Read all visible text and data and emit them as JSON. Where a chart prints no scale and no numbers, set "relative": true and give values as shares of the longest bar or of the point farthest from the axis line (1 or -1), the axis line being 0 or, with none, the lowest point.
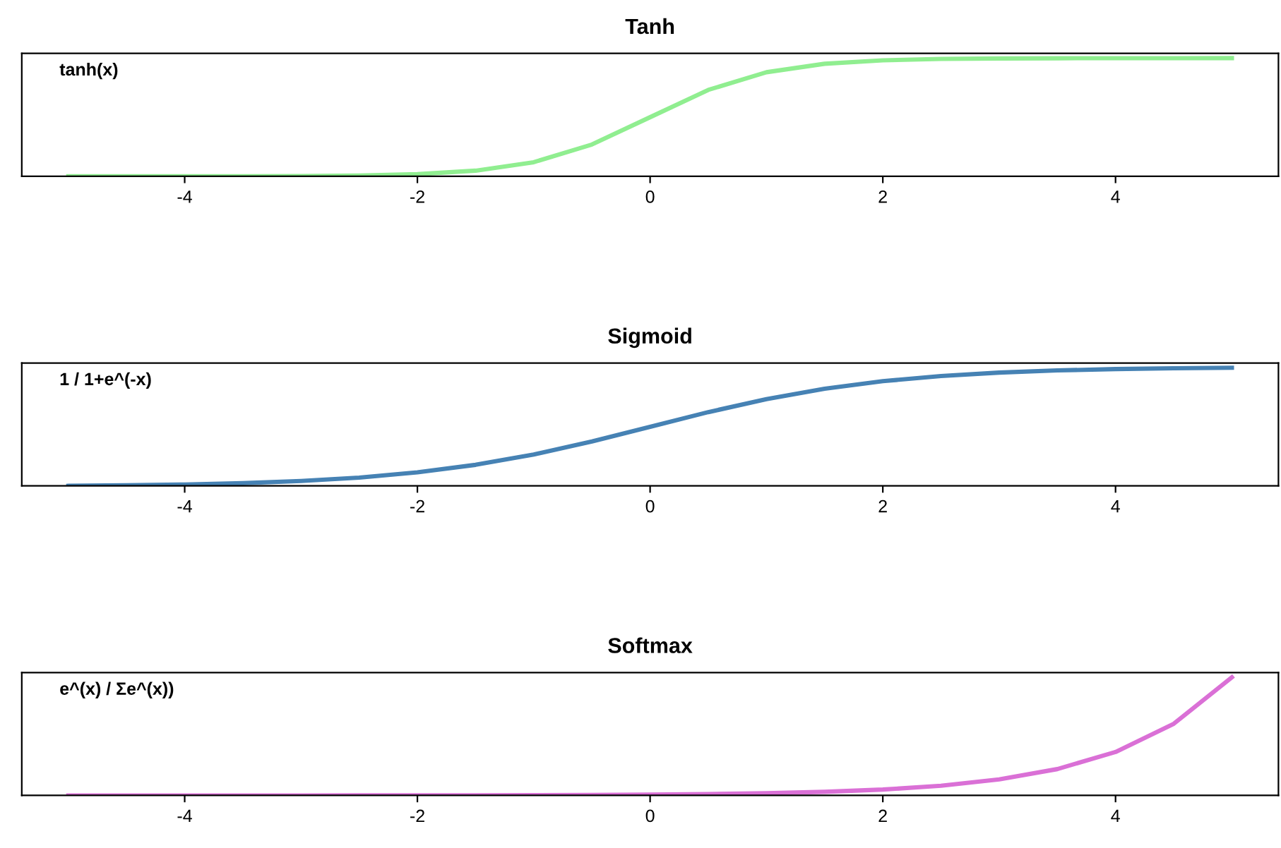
{
  "chart_data": [
    {
      "type": "line",
      "title": "Tanh",
      "relative": true,
      "tick_labels": "x",
      "grid": false,
      "annotations": [
        "tanh(x)"
      ],
      "x": [
        -5,
        -4.5,
        -4,
        -3.5,
        -3,
        -2.5,
        -2,
        -1.5,
        -1,
        -0.5,
        0,
        0.5,
        1,
        1.5,
        2,
        2.5,
        3,
        3.5,
        4,
        4.5,
        5
      ],
      "xlim": [
        -5.4,
        5.4
      ],
      "xticks": [
        -4,
        -2,
        0,
        2,
        4
      ],
      "series": [
        {
          "color": "#90ee90",
          "values": [
            0,
            0.0001,
            0.0003,
            0.0009,
            0.0025,
            0.0067,
            0.018,
            0.0474,
            0.1192,
            0.2689,
            0.5,
            0.7311,
            0.8808,
            0.9526,
            0.982,
            0.9933,
            0.9975,
            0.9991,
            0.9997,
            0.9999,
            1
          ]
        }
      ]
    },
    {
      "type": "line",
      "title": "Sigmoid",
      "relative": true,
      "tick_labels": "x",
      "grid": false,
      "annotations": [
        "1 / 1+e^(-x)"
      ],
      "x": [
        -5,
        -4.5,
        -4,
        -3.5,
        -3,
        -2.5,
        -2,
        -1.5,
        -1,
        -0.5,
        0,
        0.5,
        1,
        1.5,
        2,
        2.5,
        3,
        3.5,
        4,
        4.5,
        5
      ],
      "xlim": [
        -5.4,
        5.4
      ],
      "xticks": [
        -4,
        -2,
        0,
        2,
        4
      ],
      "series": [
        {
          "color": "#4682b4",
          "values": [
            0,
            0.0047,
            0.0114,
            0.0229,
            0.0412,
            0.0701,
            0.114,
            0.178,
            0.2658,
            0.3758,
            0.5,
            0.6242,
            0.7342,
            0.822,
            0.886,
            0.9299,
            0.9588,
            0.9771,
            0.9886,
            0.9953,
            1
          ]
        }
      ]
    },
    {
      "type": "line",
      "title": "Softmax",
      "relative": true,
      "tick_labels": "x",
      "grid": false,
      "annotations": [
        "e^(x) / Σe^(x))"
      ],
      "x": [
        -5,
        -4.5,
        -4,
        -3.5,
        -3,
        -2.5,
        -2,
        -1.5,
        -1,
        -0.5,
        0,
        0.5,
        1,
        1.5,
        2,
        2.5,
        3,
        3.5,
        4,
        4.5,
        5
      ],
      "xlim": [
        -5.4,
        5.4
      ],
      "xticks": [
        -4,
        -2,
        0,
        2,
        4
      ],
      "series": [
        {
          "color": "#da70d6",
          "values": [
            0,
            0,
            0,
            0.0001,
            0.0002,
            0.0003,
            0.0009,
            0.0015,
            0.0025,
            0.0041,
            0.0067,
            0.0111,
            0.0183,
            0.0302,
            0.0498,
            0.0821,
            0.1353,
            0.2231,
            0.3679,
            0.6065,
            1
          ]
        }
      ]
    }
  ]
}
